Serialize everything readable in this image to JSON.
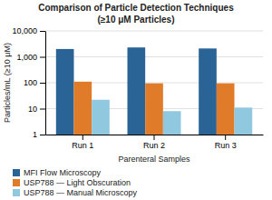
{
  "chart_data": {
    "type": "bar",
    "title": "Comparison of Particle Detection Techniques",
    "subtitle": "(≥10 μM Particles)",
    "xlabel": "Parenteral Samples",
    "ylabel": "Particles/mL (≥10 μM)",
    "categories": [
      "Run 1",
      "Run 2",
      "Run 3"
    ],
    "series": [
      {
        "name": "MFI Flow Microscopy",
        "color": "#2a6496",
        "values": [
          2000,
          2300,
          2100
        ]
      },
      {
        "name": "USP788 — Light Obscuration",
        "color": "#e07b2a",
        "values": [
          110,
          95,
          95
        ]
      },
      {
        "name": "USP788 — Manual Microscopy",
        "color": "#90c8e0",
        "values": [
          22,
          8,
          11
        ]
      }
    ],
    "ylim": [
      1,
      10000
    ],
    "yticks": [
      1,
      10,
      100,
      {
        "value": 1000,
        "label": "1,000"
      },
      {
        "value": 10000,
        "label": "10,000"
      }
    ],
    "log": "y",
    "grid": true,
    "legend": "bottom"
  }
}
